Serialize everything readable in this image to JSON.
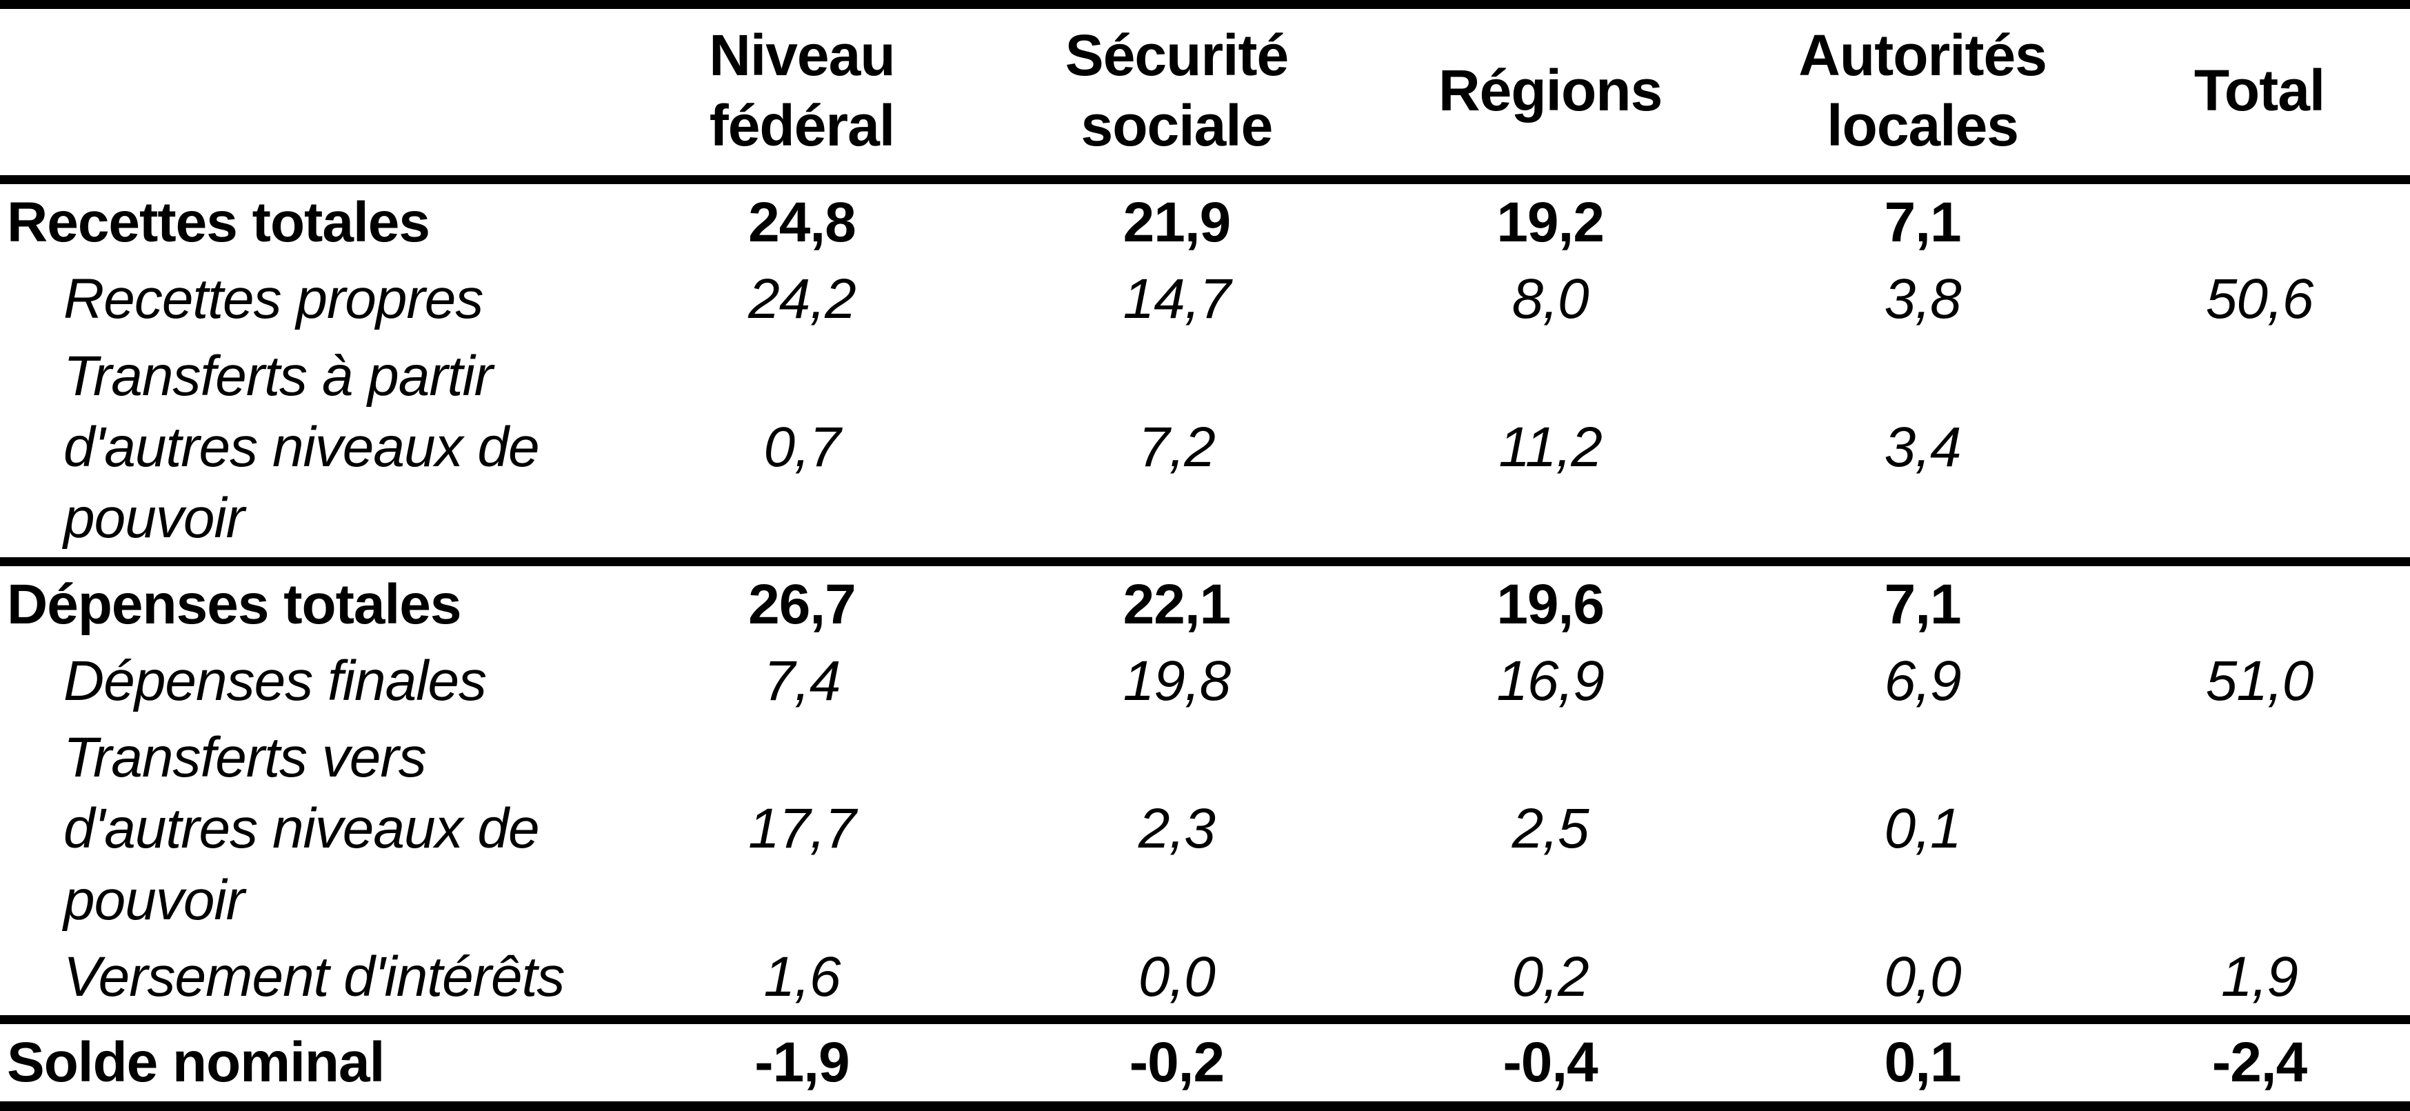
{
  "table": {
    "columns": [
      "",
      "Niveau\nfédéral",
      "Sécurité\nsociale",
      "Régions",
      "Autorités\nlocales",
      "Total"
    ],
    "rows": [
      {
        "label": "Recettes totales",
        "style": "total",
        "values": [
          "24,8",
          "21,9",
          "19,2",
          "7,1",
          ""
        ]
      },
      {
        "label": "Recettes propres",
        "style": "sub",
        "values": [
          "24,2",
          "14,7",
          "8,0",
          "3,8",
          "50,6"
        ]
      },
      {
        "label": "Transferts à partir\nd'autres niveaux de\npouvoir",
        "style": "sub",
        "values": [
          "0,7",
          "7,2",
          "11,2",
          "3,4",
          ""
        ]
      },
      {
        "label": "Dépenses totales",
        "style": "total",
        "values": [
          "26,7",
          "22,1",
          "19,6",
          "7,1",
          ""
        ]
      },
      {
        "label": "Dépenses finales",
        "style": "sub",
        "values": [
          "7,4",
          "19,8",
          "16,9",
          "6,9",
          "51,0"
        ]
      },
      {
        "label": "Transferts vers\nd'autres niveaux de\npouvoir",
        "style": "sub",
        "values": [
          "17,7",
          "2,3",
          "2,5",
          "0,1",
          ""
        ]
      },
      {
        "label": "Versement d'intérêts",
        "style": "sub",
        "values": [
          "1,6",
          "0,0",
          "0,2",
          "0,0",
          "1,9"
        ]
      },
      {
        "label": "Solde nominal",
        "style": "total",
        "values": [
          "-1,9",
          "-0,2",
          "-0,4",
          "0,1",
          "-2,4"
        ]
      }
    ]
  },
  "chart_data": {
    "type": "table",
    "columns": [
      "",
      "Niveau fédéral",
      "Sécurité sociale",
      "Régions",
      "Autorités locales",
      "Total"
    ],
    "rows": [
      {
        "label": "Recettes totales",
        "emphasis": "bold",
        "values": [
          24.8,
          21.9,
          19.2,
          7.1,
          null
        ]
      },
      {
        "label": "Recettes propres",
        "emphasis": "italic",
        "values": [
          24.2,
          14.7,
          8.0,
          3.8,
          50.6
        ]
      },
      {
        "label": "Transferts à partir d'autres niveaux de pouvoir",
        "emphasis": "italic",
        "values": [
          0.7,
          7.2,
          11.2,
          3.4,
          null
        ]
      },
      {
        "label": "Dépenses totales",
        "emphasis": "bold",
        "values": [
          26.7,
          22.1,
          19.6,
          7.1,
          null
        ]
      },
      {
        "label": "Dépenses finales",
        "emphasis": "italic",
        "values": [
          7.4,
          19.8,
          16.9,
          6.9,
          51.0
        ]
      },
      {
        "label": "Transferts vers d'autres niveaux de pouvoir",
        "emphasis": "italic",
        "values": [
          17.7,
          2.3,
          2.5,
          0.1,
          null
        ]
      },
      {
        "label": "Versement d'intérêts",
        "emphasis": "italic",
        "values": [
          1.6,
          0.0,
          0.2,
          0.0,
          1.9
        ]
      },
      {
        "label": "Solde nominal",
        "emphasis": "bold",
        "values": [
          -1.9,
          -0.2,
          -0.4,
          0.1,
          -2.4
        ]
      }
    ],
    "decimal_separator": ","
  },
  "colors": {
    "text": "#000000",
    "background": "#ffffff",
    "rule": "#000000"
  }
}
